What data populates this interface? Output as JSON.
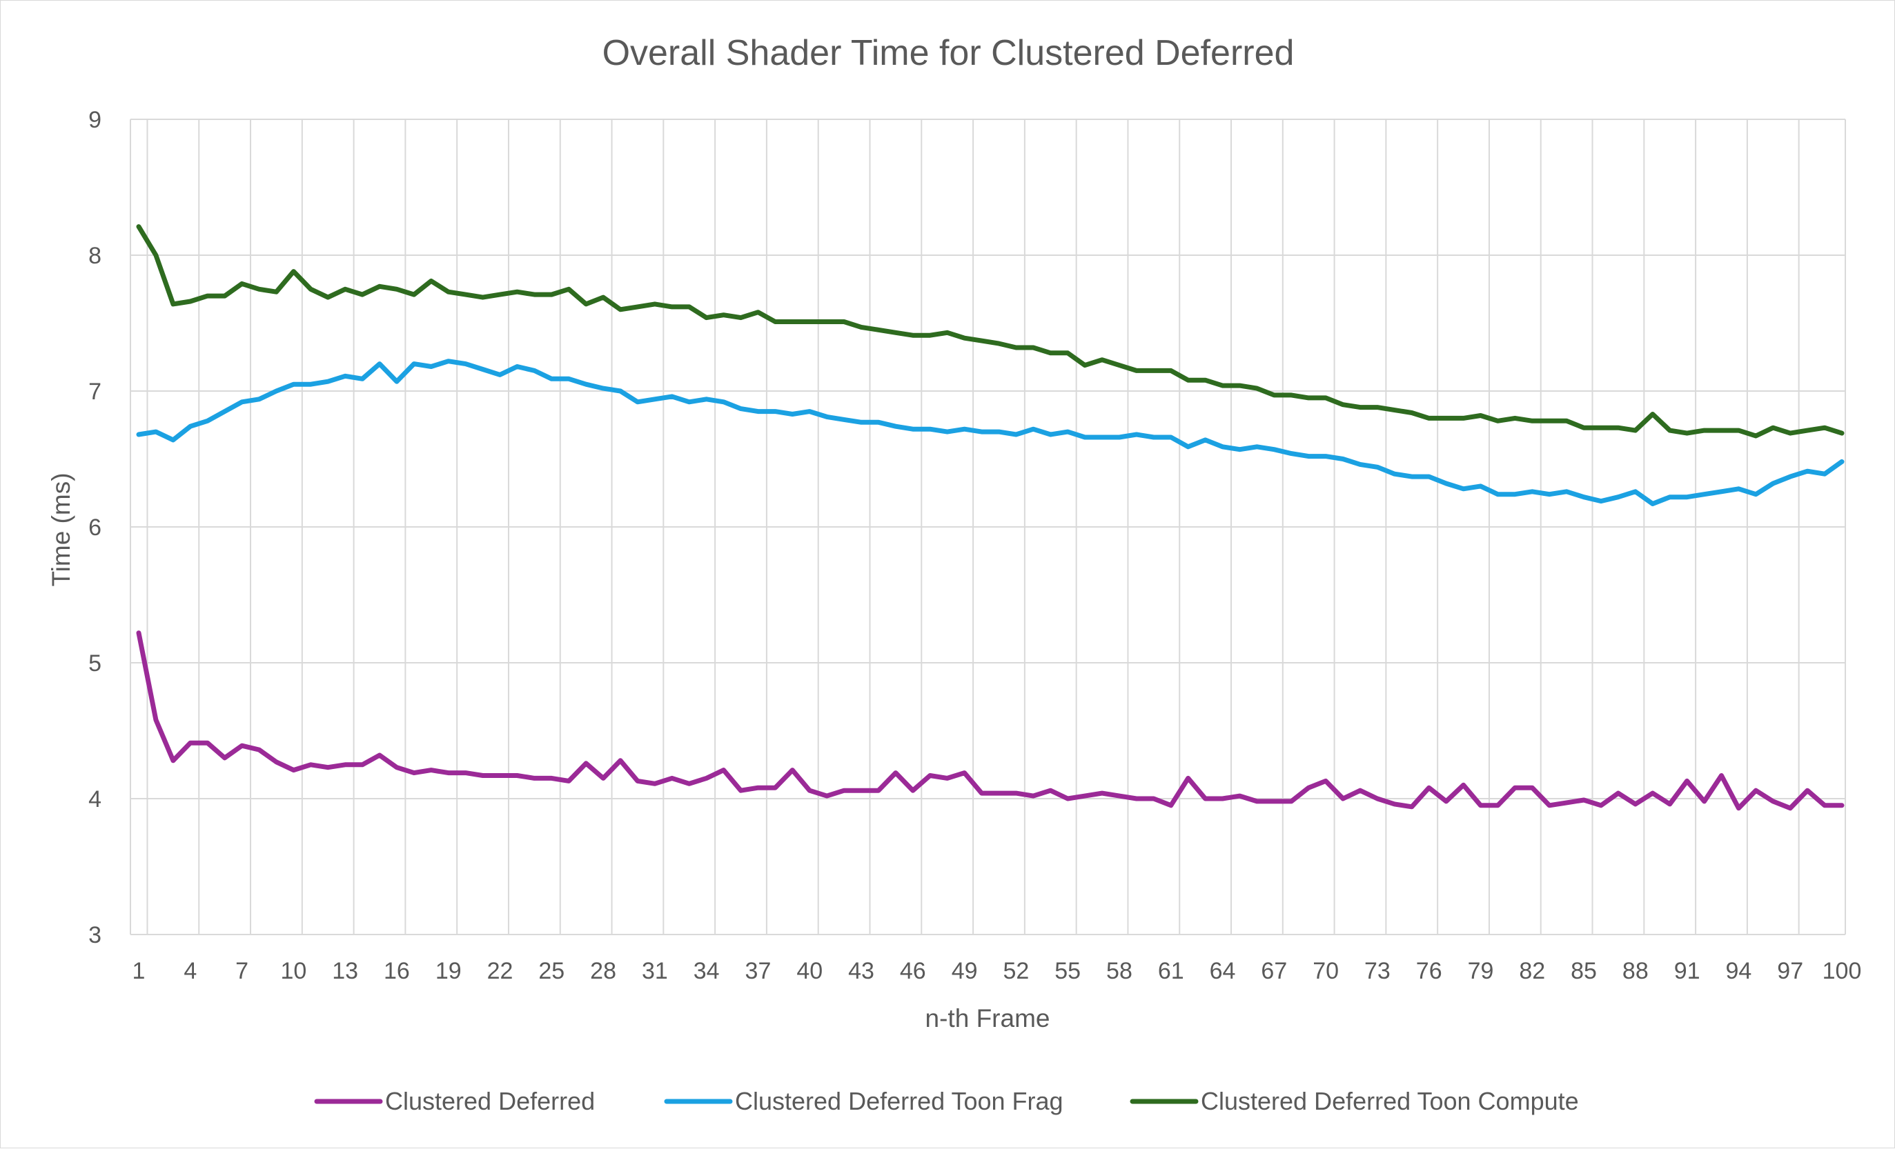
{
  "chart_data": {
    "type": "line",
    "title": "Overall Shader Time for Clustered Deferred",
    "xlabel": "n-th Frame",
    "ylabel": "Time (ms)",
    "ylim": [
      3,
      9
    ],
    "yticks": [
      3,
      4,
      5,
      6,
      7,
      8,
      9
    ],
    "xlim": [
      1,
      100
    ],
    "xtick_labels": [
      "1",
      "4",
      "7",
      "10",
      "13",
      "16",
      "19",
      "22",
      "25",
      "28",
      "31",
      "34",
      "37",
      "40",
      "43",
      "46",
      "49",
      "52",
      "55",
      "58",
      "61",
      "64",
      "67",
      "70",
      "73",
      "76",
      "79",
      "82",
      "85",
      "88",
      "91",
      "94",
      "97",
      "100"
    ],
    "grid": true,
    "legend_position": "bottom",
    "series": [
      {
        "name": "Clustered Deferred",
        "color": "#9b2a97",
        "values": [
          5.22,
          4.58,
          4.28,
          4.41,
          4.41,
          4.3,
          4.39,
          4.36,
          4.27,
          4.21,
          4.25,
          4.23,
          4.25,
          4.25,
          4.32,
          4.23,
          4.19,
          4.21,
          4.19,
          4.19,
          4.17,
          4.17,
          4.17,
          4.15,
          4.15,
          4.13,
          4.26,
          4.15,
          4.28,
          4.13,
          4.11,
          4.15,
          4.11,
          4.15,
          4.21,
          4.06,
          4.08,
          4.08,
          4.21,
          4.06,
          4.02,
          4.06,
          4.06,
          4.06,
          4.19,
          4.06,
          4.17,
          4.15,
          4.19,
          4.04,
          4.04,
          4.04,
          4.02,
          4.06,
          4.0,
          4.02,
          4.04,
          4.02,
          4.0,
          4.0,
          3.95,
          4.15,
          4.0,
          4.0,
          4.02,
          3.98,
          3.98,
          3.98,
          4.08,
          4.13,
          4.0,
          4.06,
          4.0,
          3.96,
          3.94,
          4.08,
          3.98,
          4.1,
          3.95,
          3.95,
          4.08,
          4.08,
          3.95,
          3.97,
          3.99,
          3.95,
          4.04,
          3.96,
          4.04,
          3.96,
          4.13,
          3.98,
          4.17,
          3.93,
          4.06,
          3.98,
          3.93,
          4.06,
          3.95,
          3.95
        ]
      },
      {
        "name": "Clustered Deferred Toon Frag",
        "color": "#1ba1e2",
        "values": [
          6.68,
          6.7,
          6.64,
          6.74,
          6.78,
          6.85,
          6.92,
          6.94,
          7.0,
          7.05,
          7.05,
          7.07,
          7.11,
          7.09,
          7.2,
          7.07,
          7.2,
          7.18,
          7.22,
          7.2,
          7.16,
          7.12,
          7.18,
          7.15,
          7.09,
          7.09,
          7.05,
          7.02,
          7.0,
          6.92,
          6.94,
          6.96,
          6.92,
          6.94,
          6.92,
          6.87,
          6.85,
          6.85,
          6.83,
          6.85,
          6.81,
          6.79,
          6.77,
          6.77,
          6.74,
          6.72,
          6.72,
          6.7,
          6.72,
          6.7,
          6.7,
          6.68,
          6.72,
          6.68,
          6.7,
          6.66,
          6.66,
          6.66,
          6.68,
          6.66,
          6.66,
          6.59,
          6.64,
          6.59,
          6.57,
          6.59,
          6.57,
          6.54,
          6.52,
          6.52,
          6.5,
          6.46,
          6.44,
          6.39,
          6.37,
          6.37,
          6.32,
          6.28,
          6.3,
          6.24,
          6.24,
          6.26,
          6.24,
          6.26,
          6.22,
          6.19,
          6.22,
          6.26,
          6.17,
          6.22,
          6.22,
          6.24,
          6.26,
          6.28,
          6.24,
          6.32,
          6.37,
          6.41,
          6.39,
          6.48
        ]
      },
      {
        "name": "Clustered Deferred Toon Compute",
        "color": "#2e6b1f",
        "values": [
          8.21,
          8.0,
          7.64,
          7.66,
          7.7,
          7.7,
          7.79,
          7.75,
          7.73,
          7.88,
          7.75,
          7.69,
          7.75,
          7.71,
          7.77,
          7.75,
          7.71,
          7.81,
          7.73,
          7.71,
          7.69,
          7.71,
          7.73,
          7.71,
          7.71,
          7.75,
          7.64,
          7.69,
          7.6,
          7.62,
          7.64,
          7.62,
          7.62,
          7.54,
          7.56,
          7.54,
          7.58,
          7.51,
          7.51,
          7.51,
          7.51,
          7.51,
          7.47,
          7.45,
          7.43,
          7.41,
          7.41,
          7.43,
          7.39,
          7.37,
          7.35,
          7.32,
          7.32,
          7.28,
          7.28,
          7.19,
          7.23,
          7.19,
          7.15,
          7.15,
          7.15,
          7.08,
          7.08,
          7.04,
          7.04,
          7.02,
          6.97,
          6.97,
          6.95,
          6.95,
          6.9,
          6.88,
          6.88,
          6.86,
          6.84,
          6.8,
          6.8,
          6.8,
          6.82,
          6.78,
          6.8,
          6.78,
          6.78,
          6.78,
          6.73,
          6.73,
          6.73,
          6.71,
          6.83,
          6.71,
          6.69,
          6.71,
          6.71,
          6.71,
          6.67,
          6.73,
          6.69,
          6.71,
          6.73,
          6.69
        ]
      }
    ]
  }
}
